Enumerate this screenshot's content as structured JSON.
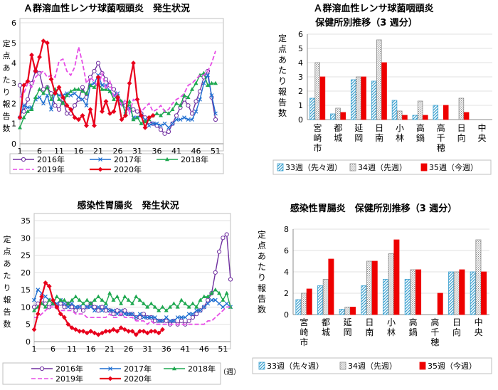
{
  "colors": {
    "y2016": "#7030a0",
    "y2017": "#1f6fd1",
    "y2018": "#1ea850",
    "y2019": "#e64ee6",
    "y2020": "#e8001c",
    "bar33": "#5ab4d6",
    "bar34": "#bdbdbd",
    "bar35": "#ee0000"
  },
  "chart_data": [
    {
      "type": "line",
      "title": "Ａ群溶血性レンサ球菌咽頭炎　発生状況",
      "ylabel": "定点あたり報告数",
      "xlabel": "",
      "xlim": [
        1,
        53
      ],
      "ylim": [
        0,
        6
      ],
      "xticks": [
        "1",
        "6",
        "11",
        "16",
        "21",
        "26",
        "31",
        "36",
        "41",
        "46",
        "51"
      ],
      "yticks": [
        "0",
        "1",
        "2",
        "3",
        "4",
        "5",
        "6"
      ],
      "legend": "bottom",
      "series": [
        {
          "name": "2016年",
          "key": "y2016",
          "marker": "circle",
          "dash": false,
          "values": [
            2.9,
            1.6,
            2.2,
            3.0,
            3.6,
            3.5,
            2.7,
            2.8,
            2.5,
            1.9,
            1.7,
            2.2,
            1.5,
            1.5,
            1.9,
            2.2,
            2.8,
            2.3,
            3.3,
            3.6,
            4.0,
            3.5,
            3.2,
            2.9,
            2.7,
            2.3,
            2.0,
            1.9,
            1.8,
            1.7,
            1.6,
            1.5,
            1.3,
            1.1,
            1.0,
            0.9,
            0.7,
            0.5,
            0.6,
            1.0,
            1.4,
            1.8,
            2.2,
            1.9,
            1.5,
            2.1,
            2.6,
            3.3,
            3.6,
            2.3,
            1.2
          ]
        },
        {
          "name": "2017年",
          "key": "y2017",
          "marker": "x",
          "dash": false,
          "values": [
            1.3,
            1.9,
            1.8,
            1.8,
            2.2,
            2.3,
            2.0,
            2.4,
            1.7,
            2.6,
            2.4,
            2.4,
            2.5,
            2.4,
            2.5,
            2.3,
            2.2,
            1.9,
            2.9,
            3.0,
            3.4,
            2.9,
            2.9,
            2.6,
            2.4,
            2.5,
            2.0,
            1.6,
            1.8,
            1.3,
            1.3,
            1.4,
            1.2,
            0.9,
            1.0,
            1.0,
            0.9,
            1.0,
            0.8,
            1.0,
            1.2,
            1.2,
            1.3,
            1.2,
            1.2,
            1.6,
            2.2,
            3.0,
            3.4,
            2.4,
            1.5
          ]
        },
        {
          "name": "2018年",
          "key": "y2018",
          "marker": "triangle",
          "dash": false,
          "values": [
            0.8,
            1.3,
            1.6,
            1.7,
            2.3,
            2.7,
            2.5,
            2.8,
            2.2,
            2.7,
            2.2,
            2.0,
            2.4,
            2.6,
            2.7,
            2.7,
            2.6,
            2.5,
            2.9,
            2.8,
            3.0,
            2.7,
            2.7,
            2.6,
            2.2,
            2.4,
            2.1,
            1.5,
            2.1,
            1.2,
            1.3,
            1.0,
            1.1,
            1.2,
            1.4,
            1.5,
            1.4,
            1.6,
            1.5,
            1.7,
            2.0,
            1.9,
            2.4,
            2.3,
            2.7,
            3.0,
            3.4,
            3.5,
            2.9,
            3.0,
            3.0
          ]
        },
        {
          "name": "2019年",
          "key": "y2019",
          "marker": "none",
          "dash": true,
          "values": [
            2.3,
            2.5,
            3.0,
            2.8,
            3.3,
            3.5,
            3.6,
            3.3,
            3.4,
            3.3,
            4.1,
            4.2,
            3.6,
            3.4,
            3.8,
            4.8,
            4.0,
            3.0,
            3.3,
            3.1,
            2.8,
            3.5,
            2.7,
            3.1,
            2.3,
            2.5,
            1.9,
            2.2,
            1.5,
            2.2,
            2.1,
            1.6,
            1.8,
            2.0,
            1.6,
            1.7,
            1.9,
            1.6,
            1.7,
            2.0,
            2.2,
            2.3,
            2.5,
            2.9,
            3.0,
            3.2,
            3.4,
            3.4,
            3.6,
            4.0,
            4.6
          ]
        },
        {
          "name": "2020年",
          "key": "y2020",
          "marker": "diamond",
          "dash": false,
          "values": [
            1.3,
            2.9,
            3.1,
            4.4,
            3.6,
            4.3,
            5.1,
            5.0,
            3.2,
            2.5,
            2.8,
            2.3,
            1.9,
            1.7,
            1.3,
            1.2,
            1.4,
            0.9,
            1.7,
            0.9,
            3.3,
            1.6,
            2.1,
            1.5,
            1.6,
            2.3,
            1.2,
            1.4,
            3.0,
            4.0,
            2.2,
            1.4,
            0.8,
            1.3,
            1.4
          ]
        }
      ]
    },
    {
      "type": "bar",
      "title": "Ａ群溶血性レンサ球菌咽頭炎",
      "subtitle": "保健所別推移（3 週分）",
      "ylabel": "定点あたり報告数",
      "ylim": [
        0,
        6
      ],
      "yticks": [
        "0",
        "1",
        "2",
        "3",
        "4",
        "5",
        "6"
      ],
      "legend": "bottom",
      "categories": [
        "宮崎市",
        "都城",
        "延岡",
        "日南",
        "小林",
        "高鍋",
        "高千穂",
        "日向",
        "中央"
      ],
      "series": [
        {
          "name": "33週（先々週）",
          "key": "bar33",
          "pattern": "hatch",
          "values": [
            1.5,
            0.4,
            2.8,
            2.7,
            1.35,
            0.3,
            1.0,
            0.0,
            0.0
          ]
        },
        {
          "name": "34週（先週）",
          "key": "bar34",
          "pattern": "dots",
          "values": [
            4.0,
            0.8,
            3.0,
            5.6,
            0.6,
            1.3,
            0.0,
            1.5,
            0.0
          ]
        },
        {
          "name": "35週（今週）",
          "key": "bar35",
          "pattern": "solid",
          "values": [
            3.0,
            0.5,
            3.0,
            4.0,
            0.3,
            0.3,
            1.0,
            0.5,
            0.0
          ]
        }
      ]
    },
    {
      "type": "line",
      "title": "感染性胃腸炎　発生状況",
      "ylabel": "定点あたり報告数",
      "xlabel": "（週）",
      "xlim": [
        1,
        53
      ],
      "ylim": [
        0,
        35
      ],
      "xticks": [
        "1",
        "6",
        "11",
        "16",
        "21",
        "26",
        "31",
        "36",
        "41",
        "46",
        "51"
      ],
      "yticks": [
        "0",
        "5",
        "10",
        "15",
        "20",
        "25",
        "30",
        "35"
      ],
      "legend": "bottom",
      "series": [
        {
          "name": "2016年",
          "key": "y2016",
          "marker": "circle",
          "dash": false,
          "values": [
            10,
            11,
            12,
            11,
            10,
            11,
            10,
            11,
            10,
            11,
            10,
            9,
            10,
            9,
            10,
            11,
            10,
            9,
            10,
            9,
            9,
            8,
            9,
            8,
            9,
            8,
            8,
            7,
            7,
            8,
            7,
            7,
            6,
            6,
            6,
            6,
            5,
            6,
            5,
            6,
            5,
            6,
            7,
            8,
            9,
            10,
            12,
            14,
            20,
            26,
            30,
            31,
            18
          ]
        },
        {
          "name": "2017年",
          "key": "y2017",
          "marker": "x",
          "dash": false,
          "values": [
            12,
            15,
            14,
            13,
            12,
            11,
            11,
            12,
            11,
            10,
            11,
            10,
            10,
            11,
            10,
            10,
            9,
            10,
            9,
            10,
            9,
            9,
            8,
            9,
            8,
            8,
            8,
            7,
            8,
            7,
            7,
            7,
            7,
            6,
            6,
            7,
            6,
            6,
            7,
            7,
            7,
            8,
            8,
            9,
            9,
            10,
            11,
            12,
            12,
            11,
            10,
            11,
            10
          ]
        },
        {
          "name": "2018年",
          "key": "y2018",
          "marker": "triangle",
          "dash": false,
          "values": [
            9,
            10,
            11,
            10,
            12,
            11,
            13,
            12,
            12,
            11,
            12,
            13,
            12,
            11,
            12,
            11,
            12,
            13,
            12,
            11,
            14,
            12,
            13,
            11,
            13,
            12,
            11,
            13,
            12,
            11,
            10,
            11,
            10,
            9,
            10,
            9,
            10,
            11,
            10,
            12,
            11,
            10,
            11,
            10,
            12,
            13,
            13,
            14,
            15,
            14,
            12,
            14,
            10
          ]
        },
        {
          "name": "2019年",
          "key": "y2019",
          "marker": "none",
          "dash": true,
          "values": [
            7,
            7,
            8,
            9,
            10,
            10,
            10,
            9,
            9,
            9,
            9,
            8,
            8,
            8,
            7,
            7,
            7,
            7,
            7,
            7,
            8,
            7,
            7,
            8,
            7,
            7,
            7,
            6,
            6,
            6,
            5,
            6,
            5,
            5,
            5,
            5,
            5,
            5,
            5,
            5,
            5,
            5,
            5,
            5,
            5,
            5,
            6,
            6,
            7,
            8,
            9,
            10,
            10
          ]
        },
        {
          "name": "2020年",
          "key": "y2020",
          "marker": "diamond",
          "dash": false,
          "values": [
            3.5,
            8,
            13,
            17,
            16,
            12,
            10,
            8,
            7,
            5,
            4,
            3.5,
            3,
            3,
            2.5,
            3,
            2.5,
            2,
            2.5,
            3,
            3,
            3.5,
            3,
            4,
            3.5,
            3,
            3,
            2,
            3,
            3,
            2.5,
            3,
            3,
            2.5,
            3.5
          ]
        }
      ]
    },
    {
      "type": "bar",
      "title": "感染性胃腸炎　保健所別推移（3 週分）",
      "ylabel": "定点あたり報告数",
      "ylim": [
        0,
        8
      ],
      "yticks": [
        "0",
        "2",
        "4",
        "6",
        "8"
      ],
      "legend": "bottom",
      "categories": [
        "宮崎市",
        "都城",
        "延岡",
        "日南",
        "小林",
        "高鍋",
        "高千穂",
        "日向",
        "中央"
      ],
      "series": [
        {
          "name": "33週（先々週）",
          "key": "bar33",
          "pattern": "hatch",
          "values": [
            1.4,
            2.7,
            0.5,
            2.7,
            3.3,
            3.3,
            0.0,
            4.0,
            4.0
          ]
        },
        {
          "name": "34週（先週）",
          "key": "bar34",
          "pattern": "dots",
          "values": [
            2.0,
            3.3,
            0.7,
            5.0,
            5.7,
            4.2,
            0.0,
            4.0,
            7.0
          ]
        },
        {
          "name": "35週（今週）",
          "key": "bar35",
          "pattern": "solid",
          "values": [
            2.4,
            5.2,
            0.7,
            5.0,
            7.0,
            4.2,
            2.0,
            4.2,
            4.0
          ]
        }
      ]
    }
  ]
}
